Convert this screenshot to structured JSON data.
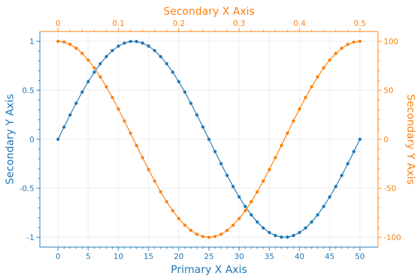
{
  "colors": {
    "blue": "#1f77b4",
    "orange": "#ff7f0e",
    "grid": "#ececec"
  },
  "chart_data": {
    "type": "line",
    "grid": true,
    "legend": "none",
    "axes": {
      "x_primary": {
        "label": "Primary X Axis",
        "position": "bottom",
        "range": [
          -3,
          53
        ],
        "ticks": [
          0,
          5,
          10,
          15,
          20,
          25,
          30,
          35,
          40,
          45,
          50
        ],
        "tick_labels": [
          "0",
          "5",
          "10",
          "15",
          "20",
          "25",
          "30",
          "35",
          "40",
          "45",
          "50"
        ],
        "color": "#1f77b4"
      },
      "x_secondary": {
        "label": "Secondary X Axis",
        "position": "top",
        "range": [
          -0.03,
          0.53
        ],
        "ticks": [
          0,
          0.1,
          0.2,
          0.3,
          0.4,
          0.5
        ],
        "tick_labels": [
          "0",
          "0.1",
          "0.2",
          "0.3",
          "0.4",
          "0.5"
        ],
        "color": "#ff7f0e"
      },
      "y_left": {
        "label": "Secondary Y Axis",
        "position": "left",
        "range": [
          -1.1,
          1.1
        ],
        "ticks": [
          -1,
          -0.5,
          0,
          0.5,
          1
        ],
        "tick_labels": [
          "-1",
          "-0.5",
          "0",
          "0.5",
          "1"
        ],
        "color": "#1f77b4"
      },
      "y_right": {
        "label": "Secondary Y Axis",
        "position": "right",
        "range": [
          -110,
          110
        ],
        "ticks": [
          -100,
          -50,
          0,
          50,
          100
        ],
        "tick_labels": [
          "-100",
          "-50",
          "0",
          "50",
          "100"
        ],
        "color": "#ff7f0e"
      }
    },
    "series": [
      {
        "x_axis": "x_primary",
        "y_axis": "y_left",
        "color": "#1f77b4",
        "x": [
          0,
          1,
          2,
          3,
          4,
          5,
          6,
          7,
          8,
          9,
          10,
          11,
          12,
          13,
          14,
          15,
          16,
          17,
          18,
          19,
          20,
          21,
          22,
          23,
          24,
          25,
          26,
          27,
          28,
          29,
          30,
          31,
          32,
          33,
          34,
          35,
          36,
          37,
          38,
          39,
          40,
          41,
          42,
          43,
          44,
          45,
          46,
          47,
          48,
          49,
          50
        ],
        "y": [
          0,
          0.125,
          0.249,
          0.368,
          0.482,
          0.588,
          0.685,
          0.771,
          0.844,
          0.905,
          0.951,
          0.982,
          0.998,
          0.998,
          0.982,
          0.951,
          0.905,
          0.844,
          0.771,
          0.685,
          0.588,
          0.482,
          0.368,
          0.249,
          0.125,
          0,
          -0.125,
          -0.249,
          -0.368,
          -0.482,
          -0.588,
          -0.685,
          -0.771,
          -0.844,
          -0.905,
          -0.951,
          -0.982,
          -0.998,
          -0.998,
          -0.982,
          -0.951,
          -0.905,
          -0.844,
          -0.771,
          -0.685,
          -0.588,
          -0.482,
          -0.368,
          -0.249,
          -0.125,
          0
        ]
      },
      {
        "x_axis": "x_secondary",
        "y_axis": "y_right",
        "color": "#ff7f0e",
        "x": [
          0,
          0.01,
          0.02,
          0.03,
          0.04,
          0.05,
          0.06,
          0.07,
          0.08,
          0.09,
          0.1,
          0.11,
          0.12,
          0.13,
          0.14,
          0.15,
          0.16,
          0.17,
          0.18,
          0.19,
          0.2,
          0.21,
          0.22,
          0.23,
          0.24,
          0.25,
          0.26,
          0.27,
          0.28,
          0.29,
          0.3,
          0.31,
          0.32,
          0.33,
          0.34,
          0.35,
          0.36,
          0.37,
          0.38,
          0.39,
          0.4,
          0.41,
          0.42,
          0.43,
          0.44,
          0.45,
          0.46,
          0.47,
          0.48,
          0.49,
          0.5
        ],
        "y": [
          100,
          99.2,
          96.9,
          93,
          87.6,
          80.9,
          72.9,
          63.7,
          53.6,
          42.6,
          30.9,
          18.7,
          6.3,
          -6.3,
          -18.7,
          -30.9,
          -42.6,
          -53.6,
          -63.7,
          -72.9,
          -80.9,
          -87.6,
          -93,
          -96.9,
          -99.2,
          -100,
          -99.2,
          -96.9,
          -93,
          -87.6,
          -80.9,
          -72.9,
          -63.7,
          -53.6,
          -42.6,
          -30.9,
          -18.7,
          -6.3,
          6.3,
          18.7,
          30.9,
          42.6,
          53.6,
          63.7,
          72.9,
          80.9,
          87.6,
          93,
          96.9,
          99.2,
          100
        ]
      }
    ]
  }
}
